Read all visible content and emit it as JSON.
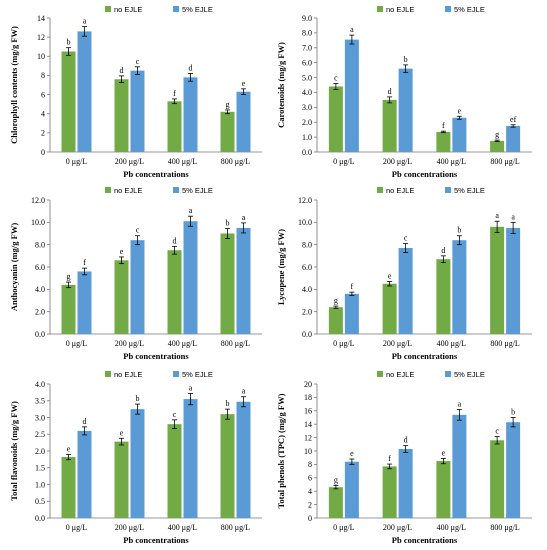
{
  "colors": {
    "no_ejle": "#72ab45",
    "ejle_5": "#5b9bd5",
    "axis": "#777777",
    "error_bar": "#000000"
  },
  "legend": {
    "series_1": "no EJLE",
    "series_2": "5% EJLE"
  },
  "chart_data": [
    {
      "type": "bar",
      "ylabel": "Chlorophyll contents (mg/g FW)",
      "xlabel": "Pb concentrations",
      "categories": [
        "0 μg/L",
        "200 μg/L",
        "400 μg/L",
        "800 μg/L"
      ],
      "ylim": [
        0,
        14
      ],
      "yticks": [
        "0",
        "2",
        "4",
        "6",
        "8",
        "10",
        "12",
        "14"
      ],
      "series": [
        {
          "name": "no EJLE",
          "values": [
            10.5,
            7.6,
            5.3,
            4.2
          ],
          "errors": [
            0.4,
            0.35,
            0.25,
            0.2
          ],
          "letters": [
            "b",
            "d",
            "f",
            "g"
          ]
        },
        {
          "name": "5% EJLE",
          "values": [
            12.6,
            8.5,
            7.8,
            6.3
          ],
          "errors": [
            0.5,
            0.4,
            0.4,
            0.3
          ],
          "letters": [
            "a",
            "c",
            "d",
            "e"
          ]
        }
      ]
    },
    {
      "type": "bar",
      "ylabel": "Carotenoids (mg/g FW)",
      "xlabel": "Pb concentrations",
      "categories": [
        "0 μg/L",
        "200 μg/L",
        "400 μg/L",
        "800 μg/L"
      ],
      "ylim": [
        0,
        9
      ],
      "yticks": [
        "0.0",
        "1.0",
        "2.0",
        "3.0",
        "4.0",
        "5.0",
        "6.0",
        "7.0",
        "8.0",
        "9.0"
      ],
      "series": [
        {
          "name": "no EJLE",
          "values": [
            4.4,
            3.5,
            1.35,
            0.75
          ],
          "errors": [
            0.2,
            0.2,
            0.05,
            0.05
          ],
          "letters": [
            "c",
            "d",
            "f",
            "g"
          ]
        },
        {
          "name": "5% EJLE",
          "values": [
            7.55,
            5.6,
            2.3,
            1.75
          ],
          "errors": [
            0.3,
            0.25,
            0.1,
            0.08
          ],
          "letters": [
            "a",
            "b",
            "e",
            "ef"
          ]
        }
      ]
    },
    {
      "type": "bar",
      "ylabel": "Anthocyanin (mg/g FW)",
      "xlabel": "Pb concentrations",
      "categories": [
        "0 μg/L",
        "200 μg/L",
        "400 μg/L",
        "800 μg/L"
      ],
      "ylim": [
        0,
        12
      ],
      "yticks": [
        "0.0",
        "2.0",
        "4.0",
        "6.0",
        "8.0",
        "10.0",
        "12.0"
      ],
      "series": [
        {
          "name": "no EJLE",
          "values": [
            4.4,
            6.6,
            7.5,
            9.0
          ],
          "errors": [
            0.25,
            0.3,
            0.35,
            0.45
          ],
          "letters": [
            "g",
            "e",
            "d",
            "b"
          ]
        },
        {
          "name": "5% EJLE",
          "values": [
            5.6,
            8.4,
            10.1,
            9.5
          ],
          "errors": [
            0.3,
            0.4,
            0.45,
            0.45
          ],
          "letters": [
            "f",
            "c",
            "a",
            "a"
          ]
        }
      ]
    },
    {
      "type": "bar",
      "ylabel": "Lycopene (mg/g FW)",
      "xlabel": "Pb concentrations",
      "categories": [
        "0 μg/L",
        "200 μg/L",
        "400 μg/L",
        "800 μg/L"
      ],
      "ylim": [
        0,
        12
      ],
      "yticks": [
        "0.0",
        "2.0",
        "4.0",
        "6.0",
        "8.0",
        "10.0",
        "12.0"
      ],
      "series": [
        {
          "name": "no EJLE",
          "values": [
            2.4,
            4.5,
            6.7,
            9.6
          ],
          "errors": [
            0.1,
            0.2,
            0.3,
            0.5
          ],
          "letters": [
            "g",
            "e",
            "d",
            "a"
          ]
        },
        {
          "name": "5% EJLE",
          "values": [
            3.6,
            7.7,
            8.4,
            9.5
          ],
          "errors": [
            0.15,
            0.4,
            0.4,
            0.5
          ],
          "letters": [
            "f",
            "c",
            "b",
            "a"
          ]
        }
      ]
    },
    {
      "type": "bar",
      "ylabel": "Total flavonoids (mg/g FW)",
      "xlabel": "Pb concentrations",
      "categories": [
        "0 μg/L",
        "200 μg/L",
        "400 μg/L",
        "800 μg/L"
      ],
      "ylim": [
        0,
        4
      ],
      "yticks": [
        "0.0",
        "0.5",
        "1.0",
        "1.5",
        "2.0",
        "2.5",
        "3.0",
        "3.5",
        "4.0"
      ],
      "series": [
        {
          "name": "no EJLE",
          "values": [
            1.82,
            2.28,
            2.8,
            3.1
          ],
          "errors": [
            0.08,
            0.1,
            0.13,
            0.15
          ],
          "letters": [
            "e",
            "e",
            "c",
            "b"
          ]
        },
        {
          "name": "5% EJLE",
          "values": [
            2.6,
            3.25,
            3.55,
            3.47
          ],
          "errors": [
            0.12,
            0.15,
            0.17,
            0.15
          ],
          "letters": [
            "d",
            "b",
            "a",
            "a"
          ]
        }
      ]
    },
    {
      "type": "bar",
      "ylabel": "Total phenols (TPC) (mg/g FW)",
      "xlabel": "Pb concentrations",
      "categories": [
        "0 μg/L",
        "200 μg/L",
        "400 μg/L",
        "800 μg/L"
      ],
      "ylim": [
        0,
        20
      ],
      "yticks": [
        "0",
        "2",
        "4",
        "6",
        "8",
        "10",
        "12",
        "14",
        "16",
        "18",
        "20"
      ],
      "series": [
        {
          "name": "no EJLE",
          "values": [
            4.6,
            7.7,
            8.5,
            11.6
          ],
          "errors": [
            0.25,
            0.35,
            0.4,
            0.55
          ],
          "letters": [
            "g",
            "f",
            "e",
            "c"
          ]
        },
        {
          "name": "5% EJLE",
          "values": [
            8.4,
            10.3,
            15.4,
            14.3
          ],
          "errors": [
            0.4,
            0.5,
            0.8,
            0.7
          ],
          "letters": [
            "e",
            "d",
            "a",
            "b"
          ]
        }
      ]
    }
  ]
}
